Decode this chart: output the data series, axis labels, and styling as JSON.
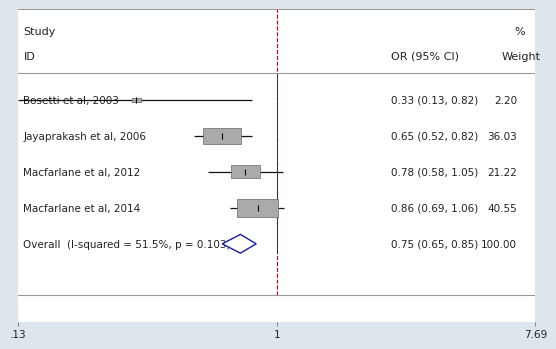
{
  "studies": [
    {
      "label": "Bosetti et al, 2003",
      "or": 0.33,
      "ci_lo": 0.13,
      "ci_hi": 0.82,
      "weight": 2.2,
      "or_text": "0.33 (0.13, 0.82)",
      "weight_text": "2.20"
    },
    {
      "label": "Jayaprakash et al, 2006",
      "or": 0.65,
      "ci_lo": 0.52,
      "ci_hi": 0.82,
      "weight": 36.03,
      "or_text": "0.65 (0.52, 0.82)",
      "weight_text": "36.03"
    },
    {
      "label": "Macfarlane et al, 2012",
      "or": 0.78,
      "ci_lo": 0.58,
      "ci_hi": 1.05,
      "weight": 21.22,
      "or_text": "0.78 (0.58, 1.05)",
      "weight_text": "21.22"
    },
    {
      "label": "Macfarlane et al, 2014",
      "or": 0.86,
      "ci_lo": 0.69,
      "ci_hi": 1.06,
      "weight": 40.55,
      "or_text": "0.86 (0.69, 1.06)",
      "weight_text": "40.55"
    }
  ],
  "overall": {
    "label": "Overall  (I-squared = 51.5%, p = 0.103)",
    "or": 0.75,
    "ci_lo": 0.65,
    "ci_hi": 0.85,
    "or_text": "0.75 (0.65, 0.85)",
    "weight_text": "100.00"
  },
  "xmin": 0.13,
  "xmax": 7.69,
  "xticks": [
    0.13,
    1.0,
    7.69
  ],
  "xticklabels": [
    ".13",
    "1",
    "7.69"
  ],
  "ref_line": 1.0,
  "header_study": "Study",
  "header_id": "ID",
  "header_or": "OR (95% CI)",
  "header_pct": "%",
  "header_weight": "Weight",
  "box_color": "#aaaaaa",
  "box_edge_color": "#666666",
  "ci_color": "#111111",
  "diamond_color": "#1a1aaa",
  "ref_line_color": "#cc0000",
  "border_color": "#999999",
  "bg_color": "#dde5ed",
  "panel_bg": "#ffffff",
  "text_color": "#222222",
  "font_size": 7.5,
  "header_font_size": 8.0
}
